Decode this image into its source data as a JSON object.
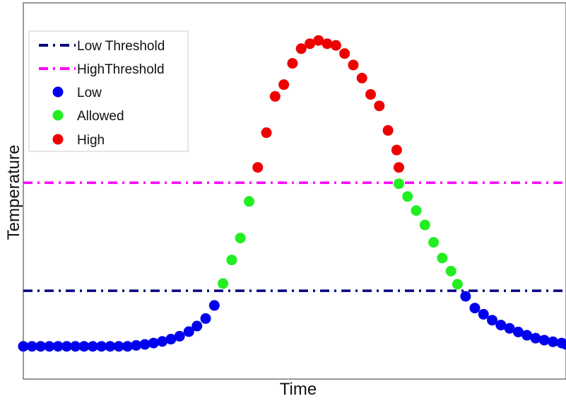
{
  "chart_data": {
    "type": "scatter",
    "xlabel": "Time",
    "ylabel": "Temperature",
    "x_ticks_shown": false,
    "y_ticks_shown": false,
    "grid": false,
    "legend_position": "top-left",
    "xlim": [
      0,
      1000
    ],
    "ylim": [
      -0.1,
      1.05
    ],
    "thresholds": [
      {
        "name": "Low Threshold",
        "value": 0.17,
        "color": "#000080",
        "style": "dash-dot"
      },
      {
        "name": "HighThreshold",
        "value": 0.5,
        "color": "#ff00ff",
        "style": "dash-dot"
      }
    ],
    "series": [
      {
        "name": "Low",
        "color": "#0000ee",
        "points": [
          [
            0,
            0
          ],
          [
            16,
            0
          ],
          [
            32,
            0
          ],
          [
            48,
            0
          ],
          [
            64,
            0
          ],
          [
            80,
            0
          ],
          [
            96,
            0
          ],
          [
            112,
            0
          ],
          [
            128,
            0
          ],
          [
            144,
            0
          ],
          [
            160,
            0
          ],
          [
            176,
            0
          ],
          [
            192,
            0
          ],
          [
            208,
            0.003
          ],
          [
            224,
            0.006
          ],
          [
            240,
            0.01
          ],
          [
            256,
            0.015
          ],
          [
            272,
            0.022
          ],
          [
            288,
            0.031
          ],
          [
            305,
            0.045
          ],
          [
            320,
            0.062
          ],
          [
            336,
            0.085
          ],
          [
            352,
            0.125
          ],
          [
            815,
            0.153
          ],
          [
            832,
            0.117
          ],
          [
            848,
            0.098
          ],
          [
            864,
            0.08
          ],
          [
            880,
            0.065
          ],
          [
            896,
            0.055
          ],
          [
            912,
            0.044
          ],
          [
            928,
            0.034
          ],
          [
            944,
            0.025
          ],
          [
            960,
            0.019
          ],
          [
            976,
            0.014
          ],
          [
            992,
            0.01
          ],
          [
            1000,
            0.006
          ]
        ]
      },
      {
        "name": "Allowed",
        "color": "#22ee22",
        "points": [
          [
            368,
            0.192
          ],
          [
            384,
            0.264
          ],
          [
            400,
            0.331
          ],
          [
            416,
            0.443
          ],
          [
            692,
            0.497
          ],
          [
            708,
            0.458
          ],
          [
            724,
            0.415
          ],
          [
            740,
            0.371
          ],
          [
            756,
            0.318
          ],
          [
            772,
            0.27
          ],
          [
            788,
            0.23
          ],
          [
            800,
            0.19
          ]
        ]
      },
      {
        "name": "High",
        "color": "#ee0000",
        "points": [
          [
            432,
            0.547
          ],
          [
            448,
            0.653
          ],
          [
            464,
            0.764
          ],
          [
            480,
            0.8
          ],
          [
            496,
            0.865
          ],
          [
            512,
            0.91
          ],
          [
            528,
            0.925
          ],
          [
            544,
            0.935
          ],
          [
            560,
            0.925
          ],
          [
            576,
            0.92
          ],
          [
            592,
            0.895
          ],
          [
            608,
            0.86
          ],
          [
            624,
            0.82
          ],
          [
            640,
            0.77
          ],
          [
            656,
            0.735
          ],
          [
            672,
            0.66
          ],
          [
            688,
            0.6
          ],
          [
            692,
            0.547
          ]
        ]
      }
    ]
  }
}
